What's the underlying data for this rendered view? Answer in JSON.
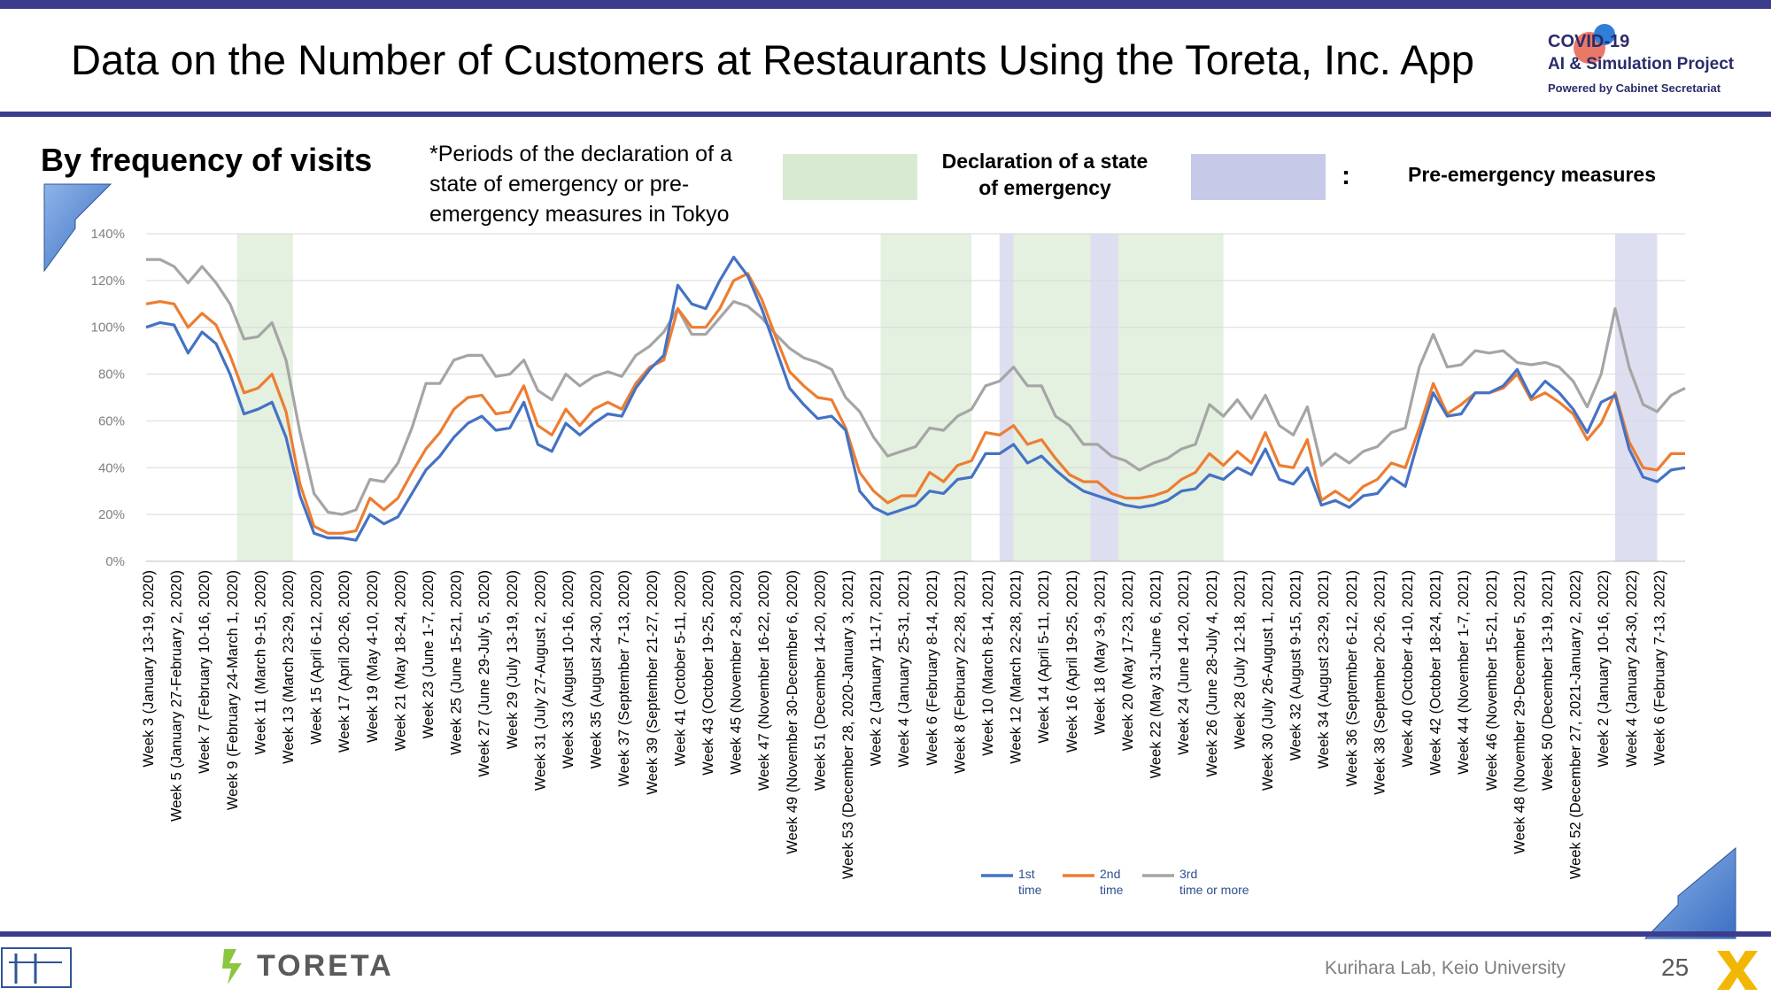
{
  "header": {
    "title": "Data on the Number of Customers at Restaurants Using the Toreta, Inc. App",
    "logo_line1": "COVID-19",
    "logo_line2": "AI & Simulation Project",
    "logo_line3": "Powered by Cabinet Secretariat"
  },
  "section": {
    "title": "By frequency of visits",
    "note": "*Periods of the declaration of a state of emergency or pre-emergency measures in Tokyo"
  },
  "period_legend": {
    "emergency_label": "Declaration of a state of emergency",
    "colon": ":",
    "pre_label": "Pre-emergency measures",
    "emergency_color": "#d9ead3",
    "pre_color": "#c7c9e8"
  },
  "footer": {
    "brand": "TORETA",
    "lab": "Kurihara Lab, Keio University",
    "page": "25"
  },
  "chart_data": {
    "type": "line",
    "ylim": [
      0,
      140
    ],
    "yticks": [
      "0%",
      "20%",
      "40%",
      "60%",
      "80%",
      "100%",
      "120%",
      "140%"
    ],
    "legend_position": "bottom",
    "series": [
      {
        "name": "1st time",
        "color": "#4472c4",
        "values": [
          100,
          102,
          101,
          89,
          98,
          93,
          80,
          63,
          65,
          68,
          53,
          28,
          12,
          10,
          10,
          9,
          20,
          16,
          19,
          29,
          39,
          45,
          53,
          59,
          62,
          56,
          57,
          68,
          50,
          47,
          59,
          54,
          59,
          63,
          62,
          74,
          82,
          88,
          118,
          110,
          108,
          120,
          130,
          122,
          108,
          91,
          74,
          67,
          61,
          62,
          56,
          30,
          23,
          20,
          22,
          24,
          30,
          29,
          35,
          36,
          46,
          46,
          50,
          42,
          45,
          39,
          34,
          30,
          28,
          26,
          24,
          23,
          24,
          26,
          30,
          31,
          37,
          35,
          40,
          37,
          48,
          35,
          33,
          40,
          24,
          26,
          23,
          28,
          29,
          36,
          32,
          53,
          72,
          62,
          63,
          72,
          72,
          75,
          82,
          70,
          77,
          72,
          65,
          55,
          68,
          71,
          48,
          36,
          34,
          39,
          40
        ]
      },
      {
        "name": "2nd time",
        "color": "#ed7d31",
        "values": [
          110,
          111,
          110,
          100,
          106,
          101,
          88,
          72,
          74,
          80,
          64,
          33,
          15,
          12,
          12,
          13,
          27,
          22,
          27,
          38,
          48,
          55,
          65,
          70,
          71,
          63,
          64,
          75,
          58,
          54,
          65,
          58,
          65,
          68,
          65,
          76,
          83,
          86,
          108,
          100,
          100,
          108,
          120,
          123,
          112,
          96,
          81,
          75,
          70,
          69,
          57,
          38,
          30,
          25,
          28,
          28,
          38,
          34,
          41,
          43,
          55,
          54,
          58,
          50,
          52,
          44,
          37,
          34,
          34,
          29,
          27,
          27,
          28,
          30,
          35,
          38,
          46,
          41,
          47,
          42,
          55,
          41,
          40,
          52,
          26,
          30,
          26,
          32,
          35,
          42,
          40,
          57,
          76,
          63,
          67,
          72,
          72,
          74,
          80,
          69,
          72,
          68,
          63,
          52,
          59,
          72,
          51,
          40,
          39,
          46,
          46
        ]
      },
      {
        "name": "3rd  time or more",
        "color": "#a5a5a5",
        "values": [
          129,
          129,
          126,
          119,
          126,
          119,
          110,
          95,
          96,
          102,
          86,
          55,
          29,
          21,
          20,
          22,
          35,
          34,
          42,
          57,
          76,
          76,
          86,
          88,
          88,
          79,
          80,
          86,
          73,
          69,
          80,
          75,
          79,
          81,
          79,
          88,
          92,
          98,
          108,
          97,
          97,
          104,
          111,
          109,
          104,
          97,
          91,
          87,
          85,
          82,
          70,
          64,
          53,
          45,
          47,
          49,
          57,
          56,
          62,
          65,
          75,
          77,
          83,
          75,
          75,
          62,
          58,
          50,
          50,
          45,
          43,
          39,
          42,
          44,
          48,
          50,
          67,
          62,
          69,
          61,
          71,
          58,
          54,
          66,
          41,
          46,
          42,
          47,
          49,
          55,
          57,
          83,
          97,
          83,
          84,
          90,
          89,
          90,
          85,
          84,
          85,
          83,
          77,
          66,
          80,
          108,
          83,
          67,
          64,
          71,
          74
        ]
      }
    ],
    "x_labels": [
      "Week 3 (January 13-19, 2020)",
      "Week 5 (January 27-February 2, 2020)",
      "Week 7 (February 10-16, 2020)",
      "Week 9 (February 24-March 1, 2020)",
      "Week 11 (March 9-15, 2020)",
      "Week 13 (March 23-29, 2020)",
      "Week 15 (April 6-12, 2020)",
      "Week 17 (April 20-26, 2020)",
      "Week 19 (May 4-10, 2020)",
      "Week 21 (May 18-24, 2020)",
      "Week 23 (June 1-7, 2020)",
      "Week 25 (June 15-21, 2020)",
      "Week 27 (June 29-July 5, 2020)",
      "Week 29 (July 13-19, 2020)",
      "Week 31 (July 27-August 2, 2020)",
      "Week 33 (August 10-16, 2020)",
      "Week 35 (August 24-30, 2020)",
      "Week 37 (September 7-13, 2020)",
      "Week 39 (September 21-27, 2020)",
      "Week 41 (October 5-11, 2020)",
      "Week 43 (October 19-25, 2020)",
      "Week 45 (November 2-8, 2020)",
      "Week 47 (November 16-22, 2020)",
      "Week 49 (November 30-December 6, 2020)",
      "Week 51 (December 14-20, 2020)",
      "Week 53 (December 28, 2020-January 3, 2021)",
      "Week 2 (January 11-17, 2021)",
      "Week 4 (January 25-31, 2021)",
      "Week 6 (February 8-14, 2021)",
      "Week 8 (February 22-28, 2021)",
      "Week 10 (March 8-14, 2021)",
      "Week 12 (March 22-28, 2021)",
      "Week 14 (April 5-11, 2021)",
      "Week 16 (April 19-25, 2021)",
      "Week 18 (May 3-9, 2021)",
      "Week 20 (May 17-23, 2021)",
      "Week 22 (May 31-June 6, 2021)",
      "Week 24 (June 14-20, 2021)",
      "Week 26 (June 28-July 4, 2021)",
      "Week 28 (July 12-18, 2021)",
      "Week 30 (July 26-August 1, 2021)",
      "Week 32 (August 9-15, 2021)",
      "Week 34 (August 23-29, 2021)",
      "Week 36 (September 6-12, 2021)",
      "Week 38 (September 20-26, 2021)",
      "Week 40 (October 4-10, 2021)",
      "Week 42 (October 18-24, 2021)",
      "Week 44 (November 1-7, 2021)",
      "Week 46 (November 15-21, 2021)",
      "Week 48 (November 29-December 5, 2021)",
      "Week 50 (December 13-19, 2021)",
      "Week 52 (December 27, 2021-January 2, 2022)",
      "Week 2 (January 10-16, 2022)",
      "Week 4 (January 24-30, 2022)",
      "Week 6 (February 7-13, 2022)"
    ],
    "periods": [
      {
        "kind": "emergency",
        "from_week_index": 6.5,
        "to_week_index": 10.5
      },
      {
        "kind": "emergency",
        "from_week_index": 52.5,
        "to_week_index": 59
      },
      {
        "kind": "pre",
        "from_week_index": 61,
        "to_week_index": 62
      },
      {
        "kind": "emergency",
        "from_week_index": 62,
        "to_week_index": 67.5
      },
      {
        "kind": "pre",
        "from_week_index": 67.5,
        "to_week_index": 69.5
      },
      {
        "kind": "emergency",
        "from_week_index": 69.5,
        "to_week_index": 77
      },
      {
        "kind": "pre",
        "from_week_index": 105,
        "to_week_index": 108
      }
    ]
  }
}
